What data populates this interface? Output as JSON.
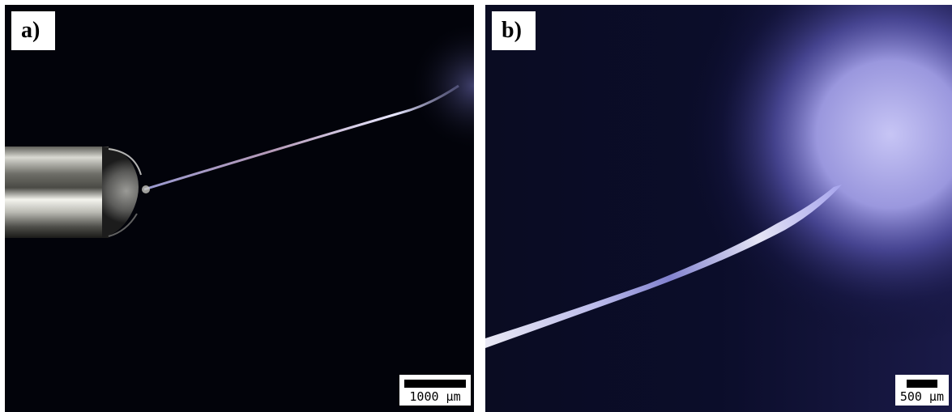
{
  "panels": [
    {
      "label": "a)",
      "scale_label": "1000 µm",
      "content": "needle-tip-with-droplet-and-fiber-jet"
    },
    {
      "label": "b)",
      "scale_label": "500 µm",
      "content": "fiber-jet-close-up-with-glow"
    }
  ],
  "colors": {
    "background": "#02030a",
    "fiber": "#e8e6ff",
    "glow": "#a9a6f0",
    "needle": "#bdbdb8"
  }
}
